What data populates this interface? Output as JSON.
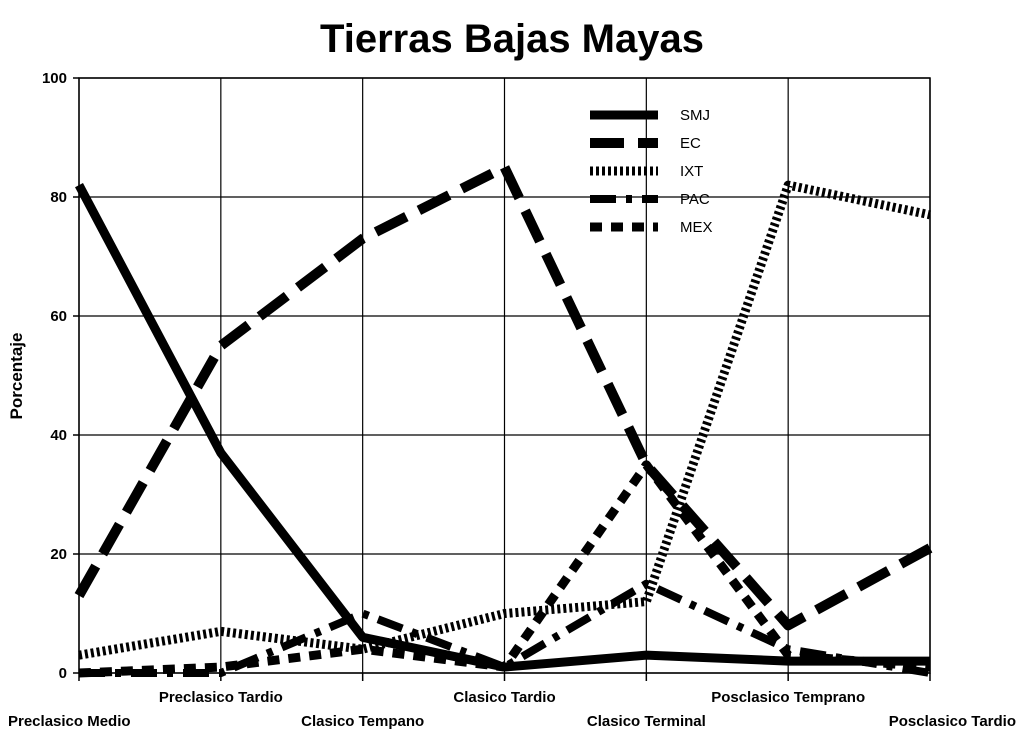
{
  "chart_data": {
    "type": "line",
    "title": "Tierras Bajas Mayas",
    "ylabel": "Porcentaje",
    "xlabel": "",
    "ylim": [
      0,
      100
    ],
    "yticks": [
      0,
      20,
      40,
      60,
      80,
      100
    ],
    "grid": true,
    "legend_position": "top-right",
    "categories": [
      "Preclasico Medio",
      "Preclasico Tardio",
      "Clasico Tempano",
      "Clasico Tardio",
      "Clasico Terminal",
      "Posclasico Temprano",
      "Posclasico Tardio"
    ],
    "series": [
      {
        "name": "SMJ",
        "values": [
          82,
          37,
          6,
          1,
          3,
          2,
          2
        ],
        "style": "solid",
        "color": "#000000"
      },
      {
        "name": "EC",
        "values": [
          13,
          55,
          73,
          85,
          35,
          8,
          21
        ],
        "style": "long-dash",
        "color": "#000000"
      },
      {
        "name": "IXT",
        "values": [
          3,
          7,
          4,
          10,
          12,
          82,
          77
        ],
        "style": "dotted",
        "color": "#000000"
      },
      {
        "name": "PAC",
        "values": [
          0,
          0,
          10,
          1,
          15,
          4,
          0
        ],
        "style": "dash-dot",
        "color": "#000000"
      },
      {
        "name": "MEX",
        "values": [
          0,
          1,
          4,
          1,
          35,
          3,
          1
        ],
        "style": "short-dash",
        "color": "#000000"
      }
    ]
  }
}
